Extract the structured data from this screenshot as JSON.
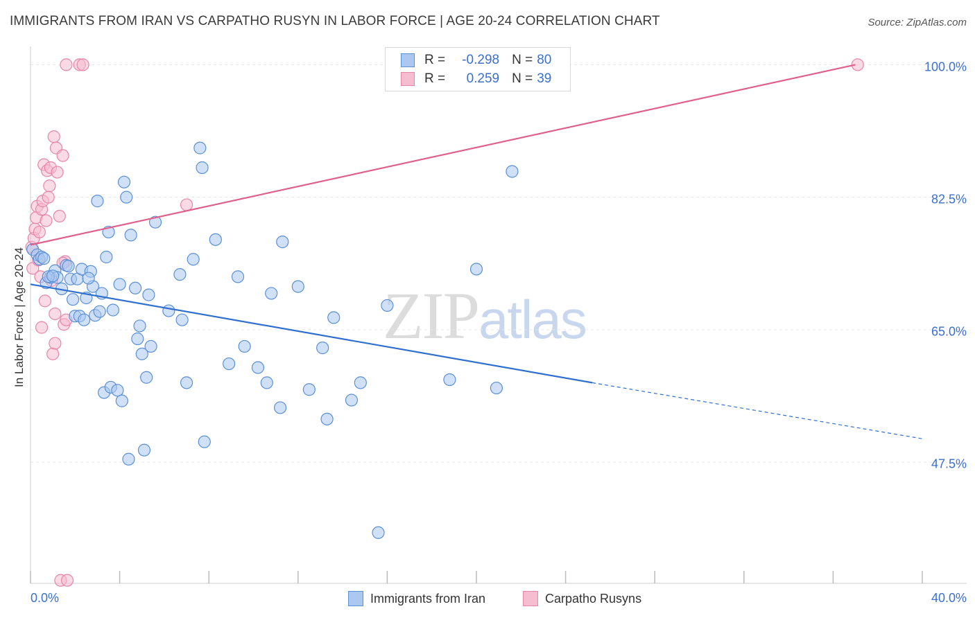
{
  "header": {
    "title": "IMMIGRANTS FROM IRAN VS CARPATHO RUSYN IN LABOR FORCE | AGE 20-24 CORRELATION CHART",
    "source": "Source: ZipAtlas.com"
  },
  "watermark": {
    "zip": "ZIP",
    "atlas": "atlas"
  },
  "legend_top": {
    "rows": [
      {
        "r_label": "R =",
        "r_value": "-0.298",
        "n_label": "N =",
        "n_value": "80"
      },
      {
        "r_label": "R =",
        "r_value": "0.259",
        "n_label": "N =",
        "n_value": "39"
      }
    ]
  },
  "colors": {
    "iran_fill": "#aac8f0",
    "iran_stroke": "#5b8fd6",
    "iran_line": "#2f6fd0",
    "rusyn_fill": "#f6bcd0",
    "rusyn_stroke": "#e884a8",
    "rusyn_line": "#e0608c",
    "grid": "#e6e6e6",
    "axis_text": "#3a6fd0"
  },
  "chart_data": {
    "type": "scatter",
    "title": "IMMIGRANTS FROM IRAN VS CARPATHO RUSYN IN LABOR FORCE | AGE 20-24 CORRELATION CHART",
    "xlabel": "",
    "ylabel": "In Labor Force | Age 20-24",
    "xlim": [
      0,
      40
    ],
    "ylim": [
      31.5,
      101.5
    ],
    "x_tick_labels": [
      "0.0%",
      "40.0%"
    ],
    "y_ticks": [
      47.5,
      65.0,
      82.5,
      100.0
    ],
    "y_tick_labels": [
      "47.5%",
      "65.0%",
      "82.5%",
      "100.0%"
    ],
    "grid": true,
    "legend_placement": "top-center",
    "series": [
      {
        "name": "Immigrants from Iran",
        "R": -0.298,
        "N": 80,
        "trend": {
          "x0": 0,
          "y0": 71.0,
          "x1": 25.2,
          "y1": 58.0,
          "dashed_to_x": 40,
          "dashed_to_y": 50.6
        },
        "points": [
          [
            0.1,
            75.6
          ],
          [
            0.3,
            74.9
          ],
          [
            0.4,
            74.3
          ],
          [
            0.5,
            74.6
          ],
          [
            0.6,
            74.4
          ],
          [
            0.7,
            71.2
          ],
          [
            0.9,
            71.9
          ],
          [
            1.1,
            72.8
          ],
          [
            1.2,
            71.9
          ],
          [
            1.4,
            70.4
          ],
          [
            1.6,
            73.5
          ],
          [
            1.8,
            71.7
          ],
          [
            1.9,
            69.0
          ],
          [
            2.0,
            66.8
          ],
          [
            2.1,
            71.7
          ],
          [
            2.2,
            66.8
          ],
          [
            2.3,
            73.0
          ],
          [
            2.4,
            66.3
          ],
          [
            2.5,
            69.2
          ],
          [
            2.7,
            72.7
          ],
          [
            2.8,
            70.7
          ],
          [
            2.9,
            66.9
          ],
          [
            3.0,
            82.0
          ],
          [
            3.1,
            67.4
          ],
          [
            3.2,
            69.8
          ],
          [
            3.3,
            56.7
          ],
          [
            3.4,
            74.6
          ],
          [
            3.5,
            77.9
          ],
          [
            3.6,
            57.4
          ],
          [
            3.7,
            67.6
          ],
          [
            3.9,
            57.0
          ],
          [
            4.0,
            71.0
          ],
          [
            4.1,
            55.6
          ],
          [
            4.2,
            84.5
          ],
          [
            4.3,
            82.5
          ],
          [
            4.4,
            47.9
          ],
          [
            4.5,
            77.5
          ],
          [
            4.7,
            70.5
          ],
          [
            4.8,
            63.8
          ],
          [
            4.9,
            65.5
          ],
          [
            5.0,
            61.8
          ],
          [
            5.1,
            49.1
          ],
          [
            5.2,
            58.7
          ],
          [
            5.3,
            69.6
          ],
          [
            5.4,
            62.8
          ],
          [
            5.6,
            79.2
          ],
          [
            6.2,
            67.5
          ],
          [
            6.8,
            66.3
          ],
          [
            6.7,
            72.3
          ],
          [
            7.0,
            58.0
          ],
          [
            7.3,
            74.3
          ],
          [
            7.6,
            89.0
          ],
          [
            7.7,
            86.4
          ],
          [
            7.8,
            50.2
          ],
          [
            8.3,
            76.9
          ],
          [
            8.9,
            60.5
          ],
          [
            9.3,
            72.0
          ],
          [
            9.6,
            62.8
          ],
          [
            10.2,
            60.0
          ],
          [
            10.6,
            58.0
          ],
          [
            10.8,
            69.8
          ],
          [
            11.2,
            54.7
          ],
          [
            11.3,
            76.6
          ],
          [
            12.0,
            70.7
          ],
          [
            12.5,
            57.1
          ],
          [
            13.1,
            62.6
          ],
          [
            13.3,
            53.2
          ],
          [
            13.6,
            66.6
          ],
          [
            14.4,
            55.7
          ],
          [
            14.8,
            58.0
          ],
          [
            16.0,
            68.2
          ],
          [
            18.8,
            58.4
          ],
          [
            20.0,
            73.0
          ],
          [
            20.9,
            57.3
          ],
          [
            21.6,
            85.9
          ],
          [
            15.6,
            38.2
          ],
          [
            0.8,
            72.0
          ],
          [
            1.0,
            72.1
          ],
          [
            2.6,
            71.8
          ],
          [
            1.7,
            73.4
          ]
        ]
      },
      {
        "name": "Carpatho Rusyns",
        "R": 0.259,
        "N": 39,
        "trend": {
          "x0": 0,
          "y0": 76.2,
          "x1": 37.0,
          "y1": 100.0
        },
        "points": [
          [
            0.05,
            75.9
          ],
          [
            0.1,
            73.1
          ],
          [
            0.15,
            77.1
          ],
          [
            0.2,
            78.3
          ],
          [
            0.25,
            79.8
          ],
          [
            0.3,
            81.3
          ],
          [
            0.35,
            74.2
          ],
          [
            0.4,
            77.9
          ],
          [
            0.45,
            72.0
          ],
          [
            0.5,
            65.3
          ],
          [
            0.5,
            80.9
          ],
          [
            0.55,
            82.0
          ],
          [
            0.6,
            86.8
          ],
          [
            0.65,
            68.8
          ],
          [
            0.7,
            79.4
          ],
          [
            0.75,
            86.0
          ],
          [
            0.8,
            82.5
          ],
          [
            0.85,
            84.0
          ],
          [
            0.9,
            86.4
          ],
          [
            0.95,
            71.5
          ],
          [
            1.0,
            61.8
          ],
          [
            1.05,
            90.5
          ],
          [
            1.1,
            63.2
          ],
          [
            1.1,
            67.1
          ],
          [
            1.15,
            89.0
          ],
          [
            1.2,
            85.8
          ],
          [
            1.3,
            80.0
          ],
          [
            1.35,
            31.9
          ],
          [
            1.5,
            65.7
          ],
          [
            1.55,
            74.0
          ],
          [
            1.6,
            66.3
          ],
          [
            1.45,
            88.0
          ],
          [
            1.65,
            31.9
          ],
          [
            1.6,
            100.0
          ],
          [
            2.2,
            100.0
          ],
          [
            2.35,
            100.0
          ],
          [
            7.0,
            81.5
          ],
          [
            37.1,
            100.0
          ],
          [
            1.45,
            73.8
          ]
        ]
      }
    ]
  },
  "bottom_legend": {
    "iran_label": "Immigrants from Iran",
    "rusyn_label": "Carpatho Rusyns"
  }
}
